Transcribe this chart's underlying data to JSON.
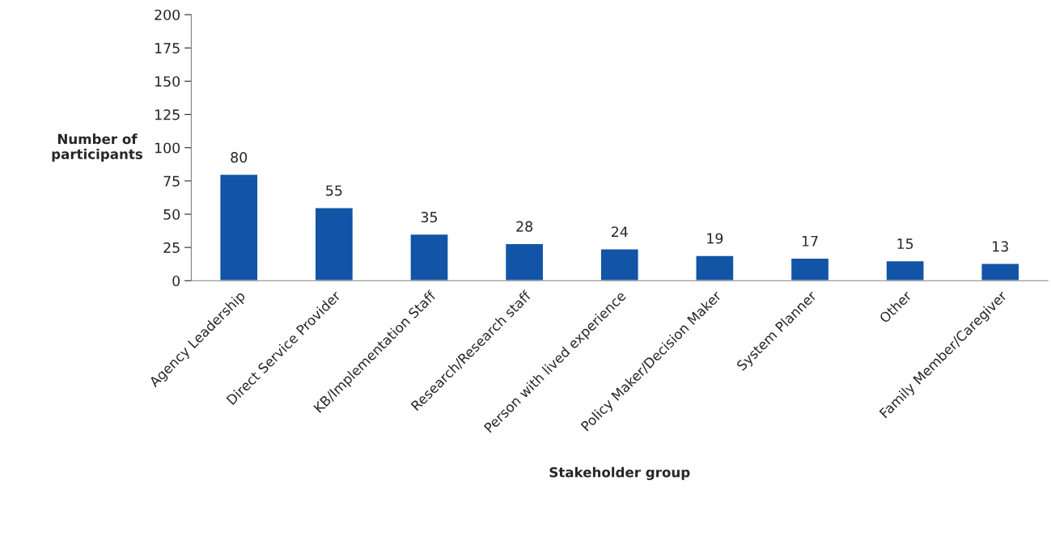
{
  "chart_data": {
    "type": "bar",
    "xlabel": "Stakeholder group",
    "ylabel": "Number of\nparticipants",
    "categories": [
      "Agency Leadership",
      "Direct Service Provider",
      "KB/Implementation Staff",
      "Research/Research staff",
      "Person with lived experience",
      "Policy Maker/Decision Maker",
      "System Planner",
      "Other",
      "Family Member/Caregiver"
    ],
    "values": [
      80,
      55,
      35,
      28,
      24,
      19,
      17,
      15,
      13
    ],
    "color": "#1254a6",
    "ylim": [
      0,
      200
    ],
    "yticks": [
      0,
      25,
      50,
      75,
      100,
      125,
      150,
      175,
      200
    ],
    "grid": false,
    "data_labels": true
  }
}
